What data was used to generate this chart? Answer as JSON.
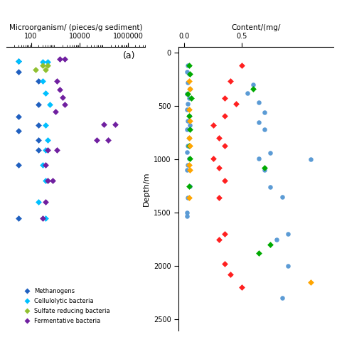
{
  "panel_a": {
    "title": "Microorganism/ (pieces/g sediment)",
    "xlabel_ticks": [
      100,
      10000,
      1000000
    ],
    "xlabel_labels": [
      "100",
      "10000",
      "1000000"
    ],
    "xlim": [
      10,
      5000000
    ],
    "ylim": [
      2600,
      -50
    ],
    "label": "(a)",
    "methanogens": {
      "color": "#2060c0",
      "x": [
        30,
        30,
        200,
        200,
        30,
        200,
        30,
        200,
        200,
        30,
        30
      ],
      "y": [
        80,
        180,
        270,
        490,
        600,
        680,
        730,
        820,
        910,
        1050,
        1550
      ]
    },
    "cellulolytic": {
      "color": "#00c0ff",
      "x": [
        30,
        300,
        500,
        300,
        400,
        600,
        400,
        500,
        400,
        300,
        400,
        200,
        400
      ],
      "y": [
        80,
        90,
        90,
        270,
        380,
        490,
        680,
        820,
        910,
        1050,
        1200,
        1400,
        1550
      ]
    },
    "sulfate": {
      "color": "#90c030",
      "x": [
        300,
        500,
        400,
        150
      ],
      "y": [
        120,
        120,
        160,
        160
      ]
    },
    "fermentative": {
      "color": "#7020a0",
      "x": [
        1500,
        2500,
        1200,
        1500,
        2000,
        2500,
        1000,
        100000,
        300000,
        50000,
        150000,
        500,
        1200,
        400,
        500,
        800,
        400,
        300
      ],
      "y": [
        60,
        60,
        270,
        350,
        420,
        490,
        550,
        670,
        670,
        820,
        820,
        910,
        910,
        1050,
        1200,
        1200,
        1400,
        1550
      ]
    }
  },
  "panel_b": {
    "xlabel_ticks": [
      0.0,
      0.5
    ],
    "xlim": [
      -0.05,
      1.3
    ],
    "ylim": [
      2600,
      -50
    ],
    "ylabel": "Depth/m",
    "yticks": [
      0,
      500,
      1000,
      1500,
      2000,
      2500
    ],
    "blue_circles": {
      "color": "#5b9bd5",
      "x": [
        0.03,
        0.02,
        0.04,
        0.03,
        0.05,
        0.02,
        0.04,
        0.03,
        0.02,
        0.04,
        0.03,
        0.05,
        0.02,
        0.04,
        0.03,
        0.02,
        0.04,
        0.03,
        0.02,
        0.05,
        0.03,
        0.02,
        0.6,
        0.55,
        0.65,
        0.7,
        0.65,
        0.7,
        0.75,
        0.65,
        0.7,
        0.75,
        0.85,
        0.9,
        0.8,
        1.1,
        0.9,
        0.85,
        0.02
      ],
      "y": [
        120,
        180,
        200,
        280,
        340,
        390,
        430,
        480,
        530,
        590,
        640,
        680,
        720,
        800,
        870,
        930,
        990,
        1050,
        1100,
        1250,
        1360,
        1500,
        300,
        380,
        470,
        560,
        650,
        720,
        940,
        990,
        1100,
        1260,
        1350,
        1700,
        1750,
        1000,
        2000,
        2300,
        1530
      ]
    },
    "red_diamonds": {
      "color": "#ff2020",
      "x": [
        0.5,
        0.4,
        0.35,
        0.45,
        0.35,
        0.25,
        0.3,
        0.35,
        0.25,
        0.3,
        0.35,
        0.3,
        0.35,
        0.3,
        0.35,
        0.4,
        0.5
      ],
      "y": [
        120,
        270,
        430,
        480,
        590,
        680,
        800,
        870,
        990,
        1080,
        1200,
        1360,
        1700,
        1750,
        1980,
        2080,
        2200
      ]
    },
    "green_diamonds": {
      "color": "#00aa00",
      "x": [
        0.04,
        0.05,
        0.03,
        0.06,
        0.04,
        0.05,
        0.04,
        0.05,
        0.04,
        0.6,
        0.7,
        0.75,
        0.65
      ],
      "y": [
        120,
        200,
        390,
        430,
        590,
        720,
        870,
        990,
        1250,
        340,
        1080,
        1800,
        1880
      ]
    },
    "yellow_diamonds": {
      "color": "#ffa500",
      "x": [
        0.04,
        0.05,
        0.04,
        0.05,
        0.04,
        0.05,
        0.04,
        0.05,
        0.04,
        1.1
      ],
      "y": [
        270,
        340,
        530,
        640,
        800,
        870,
        1050,
        1100,
        1360,
        2150
      ]
    }
  },
  "legend": {
    "items": [
      {
        "label": "Methanogens",
        "color": "#2060c0",
        "marker": "D"
      },
      {
        "label": "Cellulolytic bacteria",
        "color": "#00c0ff",
        "marker": "D"
      },
      {
        "label": "Sulfate reducing bacteria",
        "color": "#90c030",
        "marker": "D"
      },
      {
        "label": "Fermentative bacteria",
        "color": "#7020a0",
        "marker": "D"
      }
    ]
  }
}
